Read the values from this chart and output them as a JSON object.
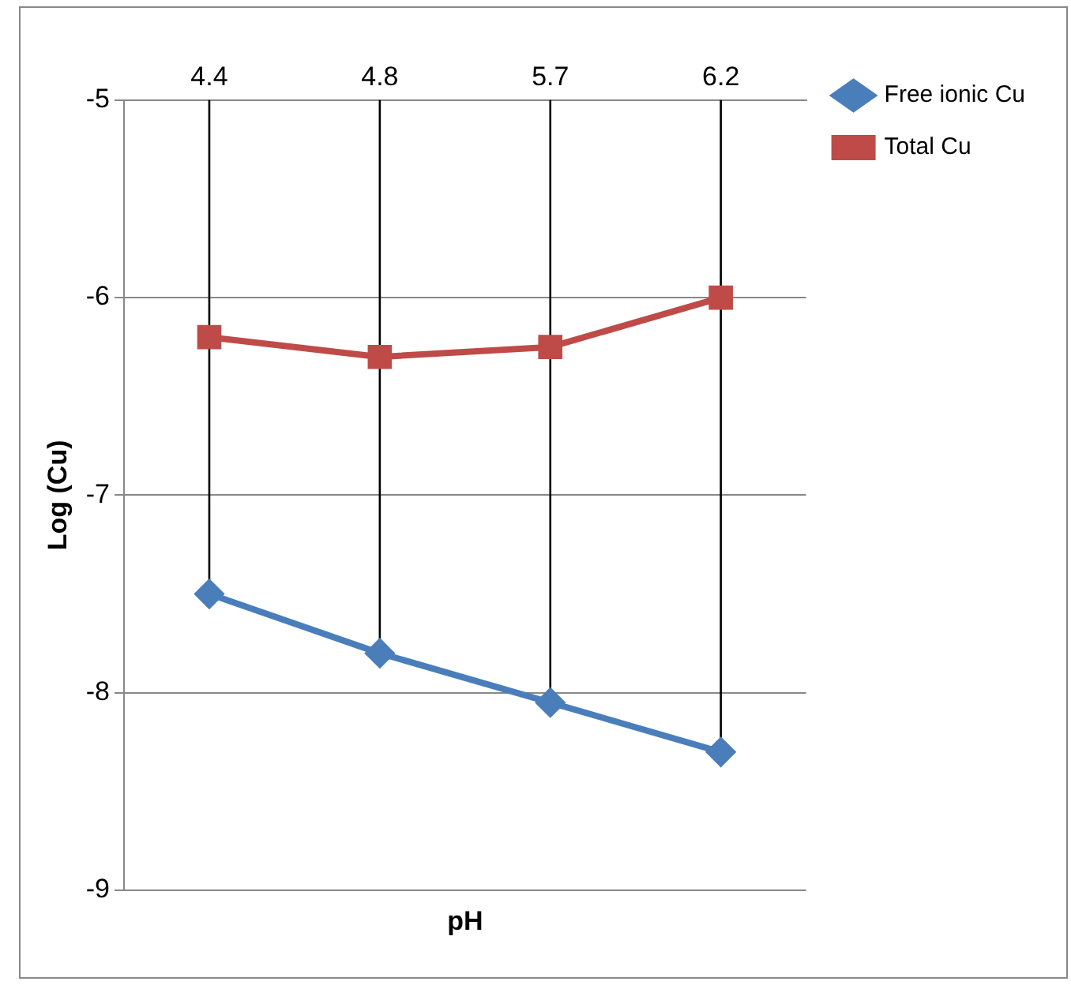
{
  "chart_data": {
    "type": "line",
    "xlabel": "pH",
    "ylabel": "Log (Cu)",
    "categories": [
      "4.4",
      "4.8",
      "5.7",
      "6.2"
    ],
    "series": [
      {
        "name": "Free ionic Cu",
        "color": "#4a7ebb",
        "values": [
          -7.5,
          -7.8,
          -8.05,
          -8.3
        ],
        "marker": "diamond"
      },
      {
        "name": "Total Cu",
        "color": "#be4b48",
        "values": [
          -6.2,
          -6.3,
          -6.25,
          -6.0
        ],
        "marker": "square"
      }
    ],
    "ylim": [
      -9,
      -5
    ],
    "yticks": [
      -5,
      -6,
      -7,
      -8,
      -9
    ],
    "grid": "y",
    "legend": "top right",
    "ref_lines": [
      {
        "axis": "x",
        "value": "4.4",
        "color": "#000000"
      },
      {
        "axis": "x",
        "value": "4.8",
        "color": "#000000"
      },
      {
        "axis": "x",
        "value": "5.7",
        "color": "#000000"
      },
      {
        "axis": "x",
        "value": "6.2",
        "color": "#000000"
      }
    ]
  }
}
